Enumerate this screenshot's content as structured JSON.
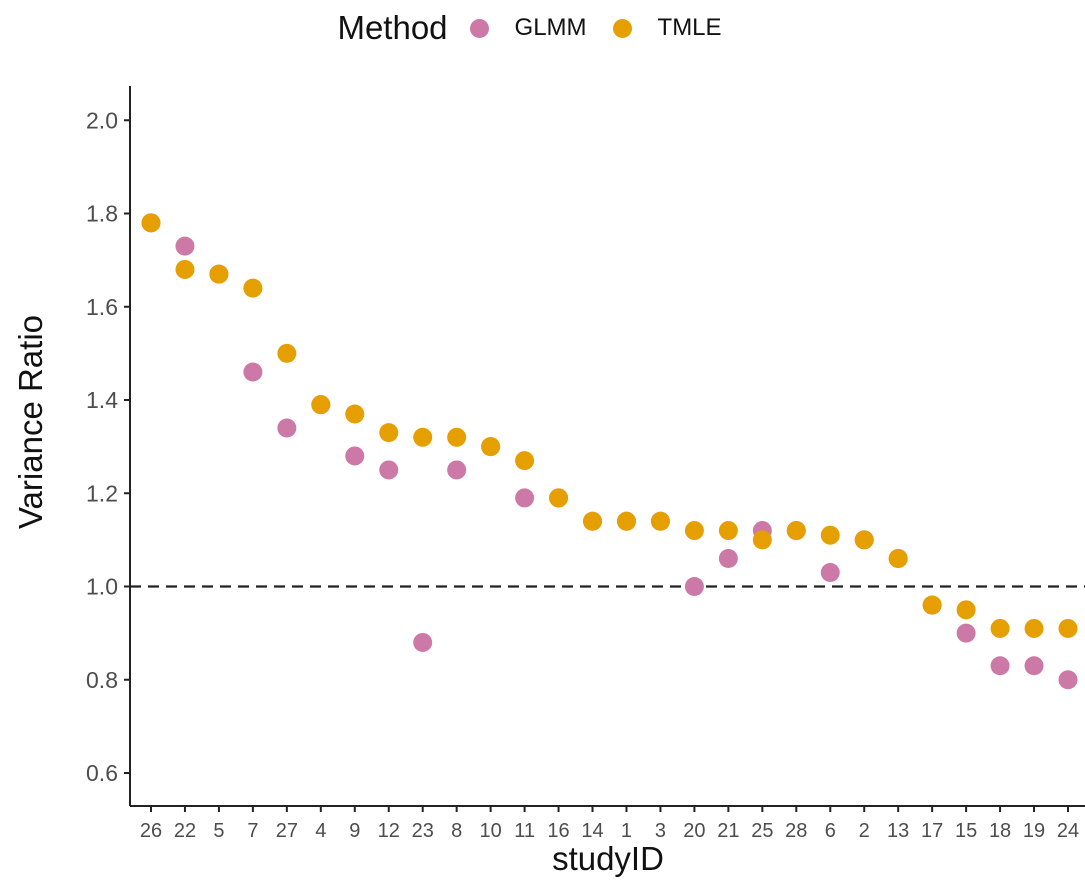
{
  "chart_data": {
    "type": "scatter",
    "legend": {
      "title": "Method",
      "position": "top"
    },
    "xlabel": "studyID",
    "ylabel": "Variance Ratio",
    "ylim": [
      0.55,
      2.05
    ],
    "yticks": [
      0.6,
      0.8,
      1.0,
      1.2,
      1.4,
      1.6,
      1.8,
      2.0
    ],
    "ytick_labels": [
      "0.6",
      "0.8",
      "1.0",
      "1.2",
      "1.4",
      "1.6",
      "1.8",
      "2.0"
    ],
    "reference_line": {
      "y": 1.0,
      "style": "dashed"
    },
    "grid": false,
    "categories": [
      "26",
      "22",
      "5",
      "7",
      "27",
      "4",
      "9",
      "12",
      "23",
      "8",
      "10",
      "11",
      "16",
      "14",
      "1",
      "3",
      "20",
      "21",
      "25",
      "28",
      "6",
      "2",
      "13",
      "17",
      "15",
      "18",
      "19",
      "24"
    ],
    "series": [
      {
        "name": "GLMM",
        "color": "#CC79A7",
        "values": [
          1.78,
          1.73,
          1.67,
          1.46,
          1.34,
          1.39,
          1.28,
          1.25,
          0.88,
          1.25,
          1.3,
          1.19,
          1.19,
          1.14,
          1.14,
          1.14,
          1.0,
          1.06,
          1.12,
          1.12,
          1.03,
          1.1,
          1.06,
          0.96,
          0.9,
          0.83,
          0.83,
          0.8
        ]
      },
      {
        "name": "TMLE",
        "color": "#E69F00",
        "values": [
          1.78,
          1.68,
          1.67,
          1.64,
          1.5,
          1.39,
          1.37,
          1.33,
          1.32,
          1.32,
          1.3,
          1.27,
          1.19,
          1.14,
          1.14,
          1.14,
          1.12,
          1.12,
          1.1,
          1.12,
          1.11,
          1.1,
          1.06,
          0.96,
          0.95,
          0.91,
          0.91,
          0.91
        ]
      }
    ]
  }
}
